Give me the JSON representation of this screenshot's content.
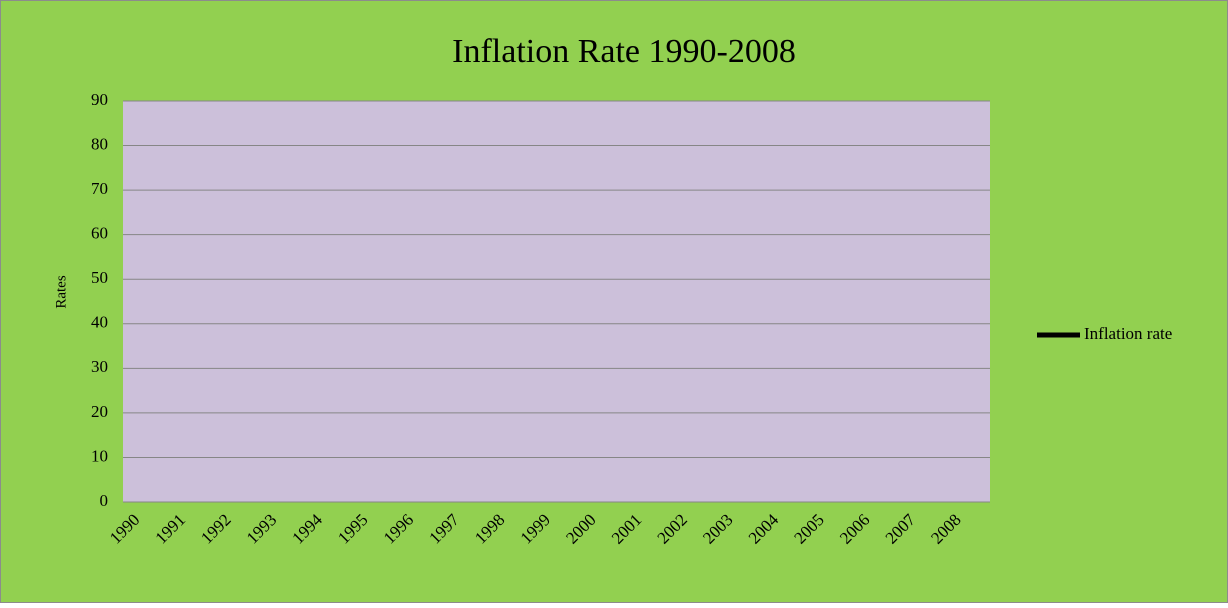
{
  "chart_data": {
    "type": "line",
    "title": "Inflation Rate 1990-2008",
    "y_label": "Rates",
    "categories": [
      "1990",
      "1991",
      "1992",
      "1993",
      "1994",
      "1995",
      "1996",
      "1997",
      "1998",
      "1999",
      "2000",
      "2001",
      "2002",
      "2003",
      "2004",
      "2005",
      "2006",
      "2007",
      "2008"
    ],
    "series": [
      {
        "name": "Inflation rate",
        "color": "#000000",
        "values": [
          null,
          null,
          null,
          null,
          null,
          null,
          null,
          null,
          null,
          null,
          null,
          null,
          null,
          null,
          null,
          null,
          null,
          null,
          null
        ]
      }
    ],
    "ylim": [
      0,
      90
    ],
    "yticks": [
      0,
      10,
      20,
      30,
      40,
      50,
      60,
      70,
      80,
      90
    ],
    "grid": true,
    "legend": "right",
    "background": "#92d050",
    "plot_background": "#ccc0da"
  }
}
